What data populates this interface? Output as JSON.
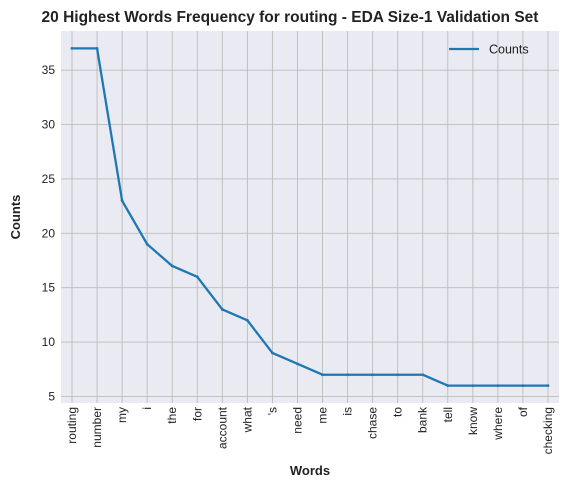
{
  "chart_data": {
    "type": "line",
    "title": "20 Highest Words Frequency for routing - EDA Size-1 Validation Set",
    "xlabel": "Words",
    "ylabel": "Counts",
    "categories": [
      "routing",
      "number",
      "my",
      "i",
      "the",
      "for",
      "account",
      "what",
      "'s",
      "need",
      "me",
      "is",
      "chase",
      "to",
      "bank",
      "tell",
      "know",
      "where",
      "of",
      "checking"
    ],
    "series": [
      {
        "name": "Counts",
        "color": "#1f77b4",
        "values": [
          37,
          37,
          23,
          19,
          17,
          16,
          13,
          12,
          9,
          8,
          7,
          7,
          7,
          7,
          7,
          6,
          6,
          6,
          6,
          6
        ]
      }
    ],
    "ylim": [
      4.4,
      38.6
    ],
    "yticks": [
      5,
      10,
      15,
      20,
      25,
      30,
      35
    ],
    "grid": true,
    "legend_position": "top-right",
    "colors": {
      "plot_background": "#eaeaf2",
      "grid": "#bcbcbc",
      "line": "#1f77b4"
    }
  }
}
